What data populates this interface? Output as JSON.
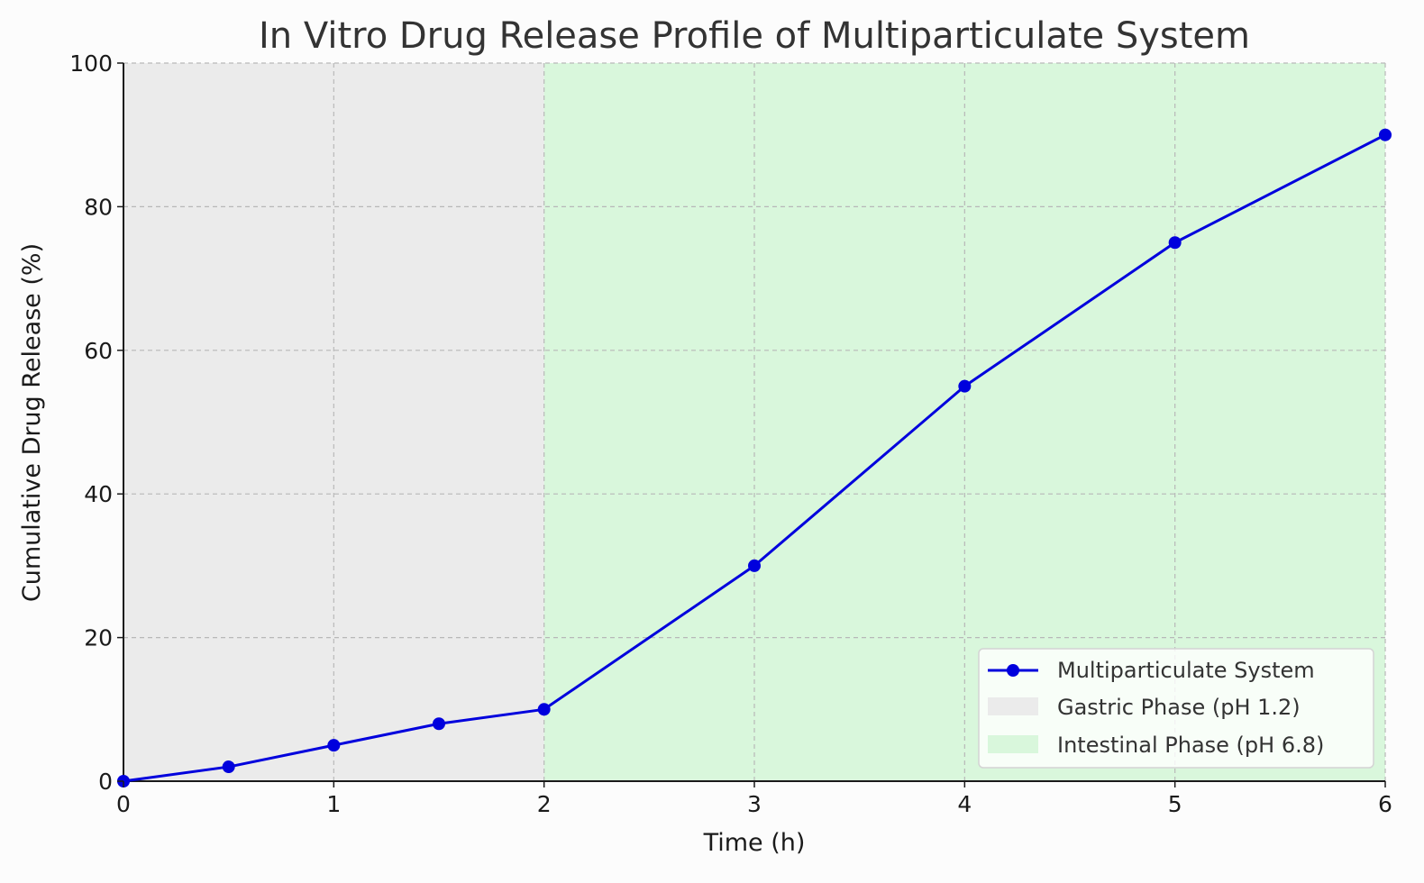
{
  "chart_data": {
    "type": "line",
    "title": "In Vitro Drug Release Profile of Multiparticulate System",
    "xlabel": "Time (h)",
    "ylabel": "Cumulative Drug Release (%)",
    "xlim": [
      0,
      6
    ],
    "ylim": [
      0,
      100
    ],
    "xticks": [
      0,
      1,
      2,
      3,
      4,
      5,
      6
    ],
    "yticks": [
      0,
      20,
      40,
      60,
      80,
      100
    ],
    "xtick_labels": [
      "0",
      "1",
      "2",
      "3",
      "4",
      "5",
      "6"
    ],
    "ytick_labels": [
      "0",
      "20",
      "40",
      "60",
      "80",
      "100"
    ],
    "grid": true,
    "legend_position": "lower-right",
    "series": [
      {
        "name": "Multiparticulate System",
        "color": "#0000dd",
        "marker": "circle",
        "x": [
          0,
          0.5,
          1,
          1.5,
          2,
          3,
          4,
          5,
          6
        ],
        "y": [
          0,
          2,
          5,
          8,
          10,
          30,
          55,
          75,
          90
        ]
      }
    ],
    "shaded_regions": [
      {
        "name": "Gastric Phase (pH 1.2)",
        "x_start": 0,
        "x_end": 2,
        "color": "#ebebeb"
      },
      {
        "name": "Intestinal Phase (pH 6.8)",
        "x_start": 2,
        "x_end": 6,
        "color": "#d9f7dc"
      }
    ]
  }
}
